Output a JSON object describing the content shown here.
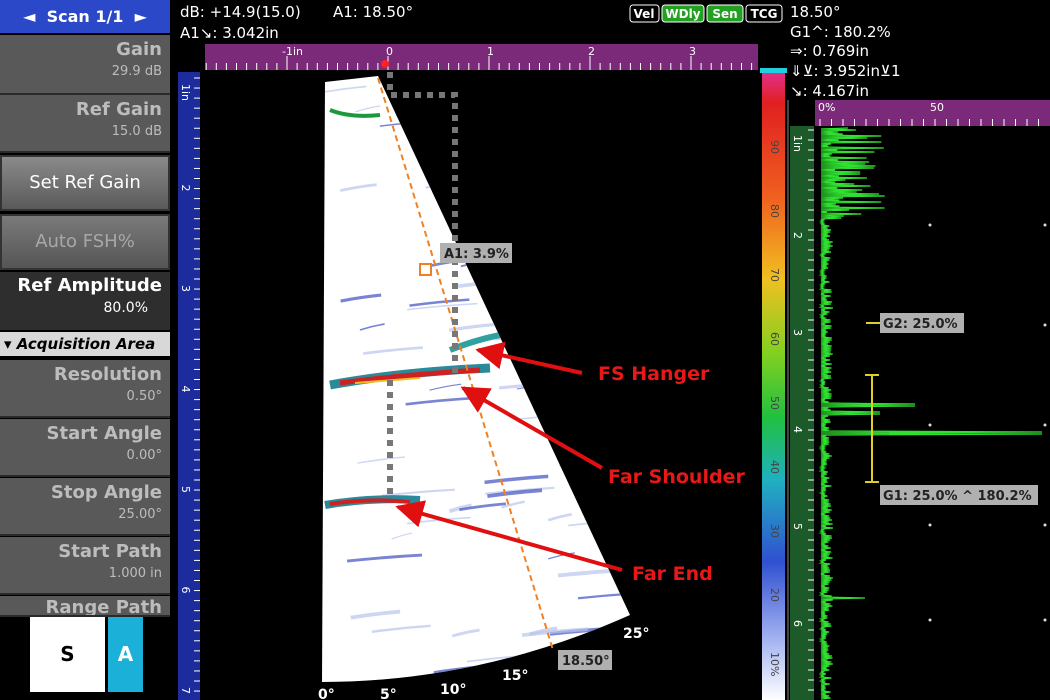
{
  "left_menu": {
    "scan": "Scan 1/1",
    "params": [
      {
        "label": "Gain",
        "value": "29.9 dB"
      },
      {
        "label": "Ref Gain",
        "value": "15.0 dB"
      }
    ],
    "buttons": [
      "Set Ref Gain",
      "Auto FSH%"
    ],
    "ref_amplitude": {
      "label": "Ref Amplitude",
      "value": "80.0%"
    },
    "section": "Acquisition Area",
    "area_params": [
      {
        "label": "Resolution",
        "value": "0.50°"
      },
      {
        "label": "Start Angle",
        "value": "0.00°"
      },
      {
        "label": "Stop Angle",
        "value": "25.00°"
      },
      {
        "label": "Start Path",
        "value": "1.000 in"
      },
      {
        "label": "Range Path"
      }
    ],
    "views": [
      "S",
      "A"
    ]
  },
  "status": {
    "db": "dB: +14.9(15.0)",
    "a1_angle": "A1: 18.50°",
    "a1_path": "A1↘: 3.042in",
    "flags": [
      "Vel",
      "WDly",
      "Sen",
      "TCG"
    ]
  },
  "readings": [
    "18.50°",
    "G1^: 180.2%",
    "⇒: 0.769in",
    "⇓⊻: 3.952in⊻1",
    "↘: 4.167in"
  ],
  "sscan": {
    "top_ruler": [
      "-1in",
      "0",
      "1",
      "2",
      "3"
    ],
    "left_ruler": [
      "1in",
      "2",
      "3",
      "4",
      "5",
      "6",
      "7"
    ],
    "color_scale": [
      "90",
      "80",
      "70",
      "60",
      "50",
      "40",
      "30",
      "20",
      "10%"
    ],
    "angles": [
      "0°",
      "5°",
      "10°",
      "15°",
      "25°"
    ],
    "cursor_angle": "18.50°",
    "cursor_amp": "A1: 3.9%",
    "annotations": [
      "FS Hanger",
      "Far Shoulder",
      "Far End"
    ]
  },
  "ascan": {
    "top_ruler": [
      "0%",
      "50"
    ],
    "left_ruler": [
      "1in",
      "2",
      "3",
      "4",
      "5",
      "6"
    ],
    "gate2": "G2: 25.0%",
    "gate1": "G1: 25.0% ^ 180.2%"
  }
}
